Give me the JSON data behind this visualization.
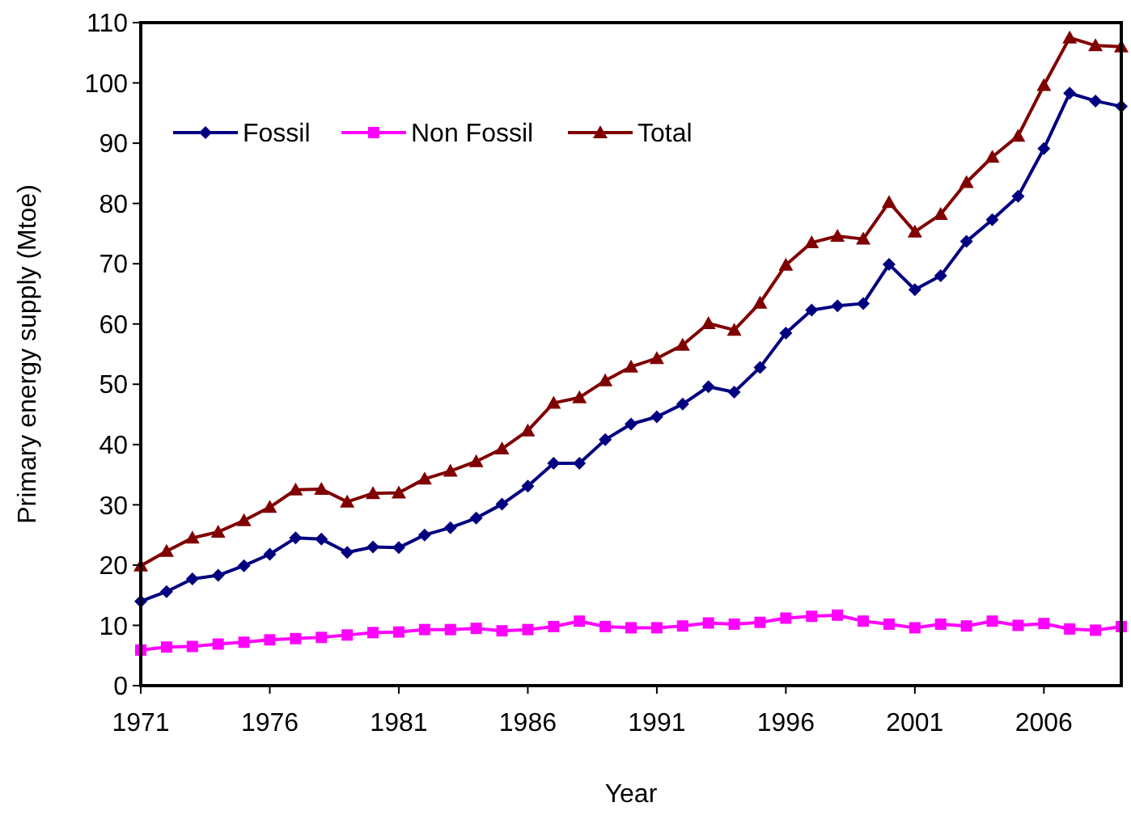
{
  "chart_data": {
    "type": "line",
    "xlabel": "Year",
    "ylabel": "Primary energy supply (Mtoe)",
    "x": [
      1971,
      1972,
      1973,
      1974,
      1975,
      1976,
      1977,
      1978,
      1979,
      1980,
      1981,
      1982,
      1983,
      1984,
      1985,
      1986,
      1987,
      1988,
      1989,
      1990,
      1991,
      1992,
      1993,
      1994,
      1995,
      1996,
      1997,
      1998,
      1999,
      2000,
      2001,
      2002,
      2003,
      2004,
      2005,
      2006,
      2007,
      2008,
      2009
    ],
    "xlim": [
      1971,
      2009
    ],
    "xticks": [
      1971,
      1976,
      1981,
      1986,
      1991,
      1996,
      2001,
      2006
    ],
    "ylim": [
      0,
      110
    ],
    "yticks": [
      0,
      10,
      20,
      30,
      40,
      50,
      60,
      70,
      80,
      90,
      100,
      110
    ],
    "grid": false,
    "legend": "top left",
    "line_style": "solid",
    "series": [
      {
        "name": "Fossil",
        "color": "#000080",
        "marker": "diamond",
        "values": [
          14.0,
          15.6,
          17.7,
          18.3,
          19.9,
          21.8,
          24.5,
          24.3,
          22.1,
          23.0,
          22.9,
          25.0,
          26.2,
          27.8,
          30.1,
          33.1,
          36.9,
          36.9,
          40.8,
          43.4,
          44.6,
          46.7,
          49.6,
          48.7,
          52.8,
          58.5,
          62.3,
          63.0,
          63.4,
          69.9,
          65.7,
          68.0,
          73.7,
          77.3,
          81.2,
          89.1,
          98.3,
          97.0,
          96.1
        ]
      },
      {
        "name": "Non Fossil",
        "color": "#ff00ff",
        "marker": "square",
        "values": [
          5.9,
          6.4,
          6.5,
          6.9,
          7.2,
          7.6,
          7.8,
          8.0,
          8.4,
          8.8,
          8.9,
          9.3,
          9.3,
          9.5,
          9.1,
          9.3,
          9.8,
          10.7,
          9.8,
          9.6,
          9.6,
          9.9,
          10.4,
          10.2,
          10.5,
          11.2,
          11.5,
          11.7,
          10.7,
          10.2,
          9.6,
          10.2,
          9.9,
          10.7,
          10.0,
          10.3,
          9.4,
          9.2,
          9.8
        ]
      },
      {
        "name": "Total",
        "color": "#800000",
        "marker": "triangle",
        "values": [
          19.9,
          22.3,
          24.5,
          25.5,
          27.4,
          29.6,
          32.5,
          32.6,
          30.5,
          31.9,
          32.0,
          34.3,
          35.6,
          37.2,
          39.3,
          42.3,
          46.9,
          47.8,
          50.6,
          52.9,
          54.3,
          56.5,
          60.1,
          59.0,
          63.5,
          69.8,
          73.5,
          74.6,
          74.1,
          80.2,
          75.3,
          78.2,
          83.5,
          87.7,
          91.2,
          99.6,
          107.5,
          106.2,
          106.0
        ]
      }
    ]
  }
}
